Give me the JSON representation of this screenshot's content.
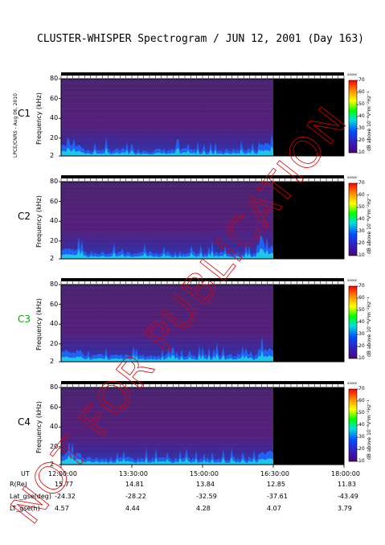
{
  "header": {
    "title": "CLUSTER-WHISPER Spectrogram / JUN 12, 2001 (Day 163)",
    "credit": "LPCE/CNRS - Aug 06, 2010",
    "watermark": "NOT FOR PUBLICATION"
  },
  "colorbar": {
    "label": "dB above 10⁻⁸V²m⁻²Hz⁻¹",
    "head": "xxxxx",
    "ticks": [
      "70",
      "60",
      "50",
      "40",
      "30",
      "20",
      "10"
    ],
    "colors": [
      "#ff0000",
      "#ff8c00",
      "#ffff00",
      "#00ff00",
      "#00e0e0",
      "#0050ff",
      "#3020c0",
      "#500080"
    ]
  },
  "axis": {
    "ylabel": "Frequency (kHz)",
    "yticks": [
      "80",
      "60",
      "40",
      "20",
      "2"
    ],
    "ut_label": "UT",
    "xticks": [
      "12:00:00",
      "13:30:00",
      "15:00:00",
      "16:30:00",
      "18:00:00"
    ]
  },
  "chart_data": {
    "type": "heatmap",
    "title": "CLUSTER-WHISPER Spectrogram / JUN 12, 2001 (Day 163)",
    "xlabel": "UT",
    "ylabel": "Frequency (kHz)",
    "x_range": [
      "12:00:00",
      "18:00:00"
    ],
    "ylim": [
      2,
      80
    ],
    "data_coverage_end": "16:30:00",
    "colorbar_range": [
      10,
      70
    ],
    "panels": [
      {
        "name": "C1",
        "label_color": "#000000"
      },
      {
        "name": "C2",
        "label_color": "#000000"
      },
      {
        "name": "C3",
        "label_color": "#00aa00"
      },
      {
        "name": "C4",
        "label_color": "#000000"
      }
    ]
  },
  "ephemeris": {
    "rows": [
      {
        "label": "R(Re)",
        "values": [
          "15.77",
          "14.81",
          "13.84",
          "12.85",
          "11.83"
        ]
      },
      {
        "label": "Lat_gse(deg)",
        "values": [
          "-24.32",
          "-28.22",
          "-32.59",
          "-37.61",
          "-43.49"
        ]
      },
      {
        "label": "LT_gse(h)",
        "values": [
          "4.57",
          "4.44",
          "4.28",
          "4.07",
          "3.79"
        ]
      }
    ]
  }
}
